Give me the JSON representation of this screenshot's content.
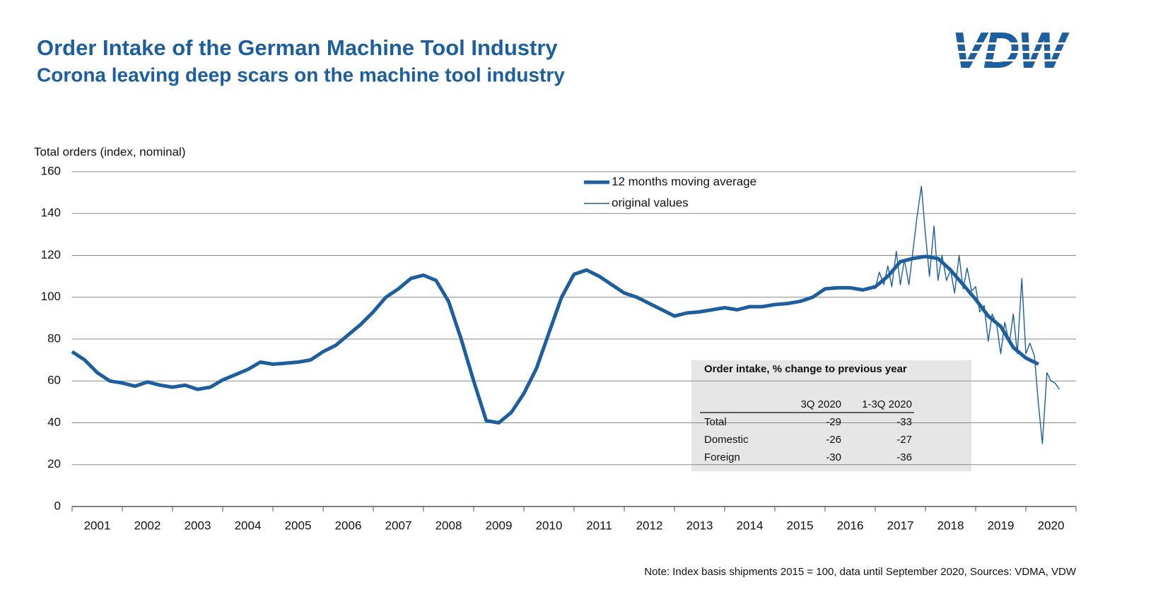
{
  "chart_data": {
    "type": "line",
    "title": "Order Intake of the German Machine Tool Industry",
    "subtitle": "Corona leaving deep scars on the machine tool industry",
    "logo": "VDW",
    "y_label": "Total orders (index, nominal)",
    "note": "Note: Index basis shipments 2015 = 100, data until September 2020, Sources: VDMA, VDW",
    "categories": [
      "2001",
      "2002",
      "2003",
      "2004",
      "2005",
      "2006",
      "2007",
      "2008",
      "2009",
      "2010",
      "2011",
      "2012",
      "2013",
      "2014",
      "2015",
      "2016",
      "2017",
      "2018",
      "2019",
      "2020"
    ],
    "xlim": [
      2001,
      2021
    ],
    "ylim": [
      0,
      160
    ],
    "yticks": [
      0,
      20,
      40,
      60,
      80,
      100,
      120,
      140,
      160
    ],
    "grid": true,
    "series": [
      {
        "name": "12 months moving average",
        "color": "#1d5e9e",
        "line_width": 5,
        "x": [
          2001.0,
          2001.25,
          2001.5,
          2001.75,
          2002.0,
          2002.25,
          2002.5,
          2002.75,
          2003.0,
          2003.25,
          2003.5,
          2003.75,
          2004.0,
          2004.25,
          2004.5,
          2004.75,
          2005.0,
          2005.25,
          2005.5,
          2005.75,
          2006.0,
          2006.25,
          2006.5,
          2006.75,
          2007.0,
          2007.25,
          2007.5,
          2007.75,
          2008.0,
          2008.25,
          2008.5,
          2008.75,
          2009.0,
          2009.25,
          2009.5,
          2009.75,
          2010.0,
          2010.25,
          2010.5,
          2010.75,
          2011.0,
          2011.25,
          2011.5,
          2011.75,
          2012.0,
          2012.25,
          2012.5,
          2012.75,
          2013.0,
          2013.25,
          2013.5,
          2013.75,
          2014.0,
          2014.25,
          2014.5,
          2014.75,
          2015.0,
          2015.25,
          2015.5,
          2015.75,
          2016.0,
          2016.25,
          2016.5,
          2016.75,
          2017.0,
          2017.25,
          2017.5,
          2017.75,
          2018.0,
          2018.25,
          2018.5,
          2018.75,
          2019.0,
          2019.25,
          2019.5,
          2019.75,
          2020.0,
          2020.25
        ],
        "values": [
          74,
          70,
          64,
          60,
          59,
          57.5,
          59.5,
          58,
          57,
          58,
          56,
          57,
          60.5,
          63,
          65.5,
          69,
          68,
          68.5,
          69,
          70,
          74,
          77,
          82,
          87,
          93,
          100,
          104,
          109,
          110.5,
          108,
          98,
          80,
          60,
          41,
          40,
          45,
          54,
          66,
          83,
          100,
          111,
          113,
          110,
          106,
          102,
          100,
          97,
          94,
          91,
          92.5,
          93,
          94,
          95,
          94,
          95.5,
          95.5,
          96.5,
          97,
          98,
          100,
          104,
          104.5,
          104.5,
          103.5,
          105,
          110,
          117,
          118.5,
          119.5,
          118.5,
          113,
          106,
          99,
          91,
          86,
          76,
          71,
          68
        ]
      },
      {
        "name": "original values",
        "color": "#1d5e9e",
        "line_width": 1.4,
        "x": [
          2017.0,
          2017.08,
          2017.17,
          2017.25,
          2017.33,
          2017.42,
          2017.5,
          2017.58,
          2017.67,
          2017.75,
          2017.83,
          2017.92,
          2018.0,
          2018.08,
          2018.17,
          2018.25,
          2018.33,
          2018.42,
          2018.5,
          2018.58,
          2018.67,
          2018.75,
          2018.83,
          2018.92,
          2019.0,
          2019.08,
          2019.17,
          2019.25,
          2019.33,
          2019.42,
          2019.5,
          2019.58,
          2019.67,
          2019.75,
          2019.83,
          2019.92,
          2020.0,
          2020.08,
          2020.17,
          2020.25,
          2020.33,
          2020.42,
          2020.5,
          2020.58,
          2020.67
        ],
        "values": [
          104,
          112,
          106,
          115,
          105,
          122,
          106,
          118,
          106,
          122,
          138,
          153,
          130,
          110,
          134,
          108,
          120,
          108,
          113,
          102,
          120,
          104,
          114,
          103,
          105,
          93,
          96,
          79,
          92,
          87,
          73,
          88,
          78,
          92,
          73,
          109,
          73,
          78,
          72,
          49,
          30,
          64,
          60,
          59,
          56
        ]
      }
    ],
    "table": {
      "title": "Order intake, % change to previous year",
      "columns": [
        "3Q 2020",
        "1-3Q 2020"
      ],
      "rows": [
        {
          "label": "Total",
          "values": [
            -29,
            -33
          ]
        },
        {
          "label": "Domestic",
          "values": [
            -26,
            -27
          ]
        },
        {
          "label": "Foreign",
          "values": [
            -30,
            -36
          ]
        }
      ]
    }
  }
}
